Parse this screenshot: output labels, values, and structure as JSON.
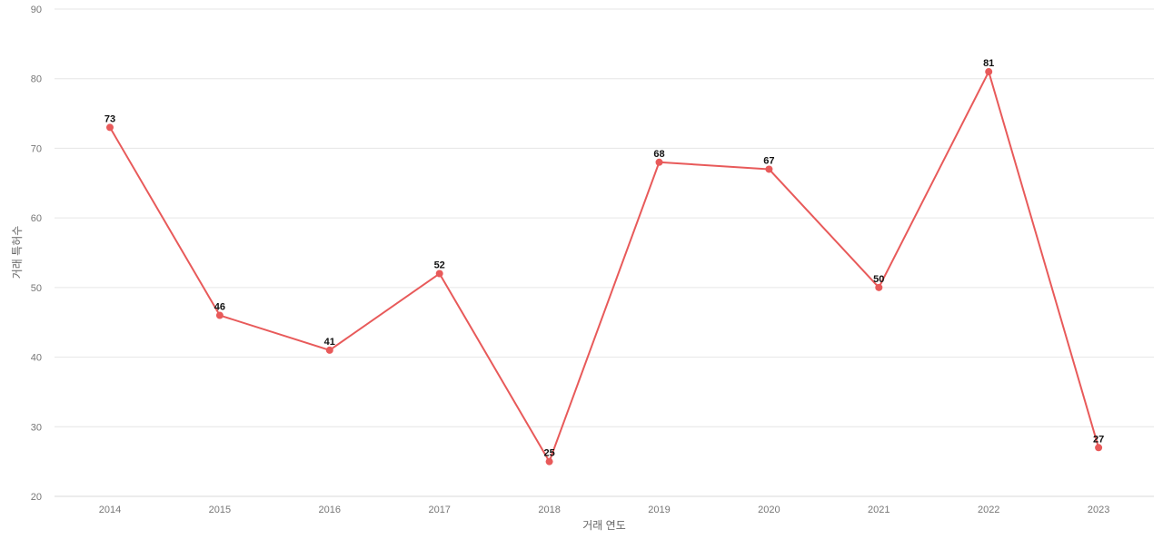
{
  "chart_data": {
    "type": "line",
    "title": "",
    "xlabel": "거래 연도",
    "ylabel": "거래 특허수",
    "categories": [
      "2014",
      "2015",
      "2016",
      "2017",
      "2018",
      "2019",
      "2020",
      "2021",
      "2022",
      "2023"
    ],
    "series": [
      {
        "values": [
          73,
          46,
          41,
          52,
          25,
          68,
          67,
          50,
          81,
          27
        ]
      }
    ],
    "ylim": [
      20,
      90
    ],
    "yticks": [
      20,
      30,
      40,
      50,
      60,
      70,
      80,
      90
    ],
    "grid": true,
    "legend": "none",
    "line_color": "#e85a5a"
  }
}
